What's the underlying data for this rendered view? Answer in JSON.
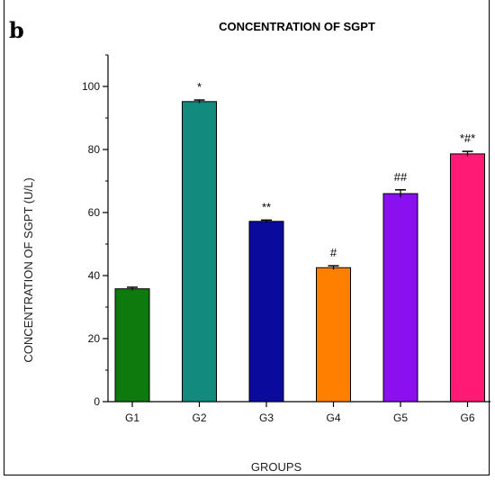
{
  "panel_label": "b",
  "chart_data": {
    "type": "bar",
    "title": "CONCENTRATION OF SGPT",
    "xlabel": "GROUPS",
    "ylabel": "CONCENTRATION OF SGPT (U/L)",
    "categories": [
      "G1",
      "G2",
      "G3",
      "G4",
      "G5",
      "G6"
    ],
    "values": [
      35.8,
      95.2,
      57.2,
      42.5,
      66.0,
      78.6
    ],
    "errors": [
      0.5,
      0.5,
      0.4,
      0.6,
      1.2,
      0.8
    ],
    "annotations": [
      "",
      "*",
      "**",
      "#",
      "##",
      "*#*"
    ],
    "colors": [
      "#0e7a0e",
      "#128a7e",
      "#0a0a9c",
      "#ff7f00",
      "#8a10f0",
      "#ff1a75"
    ],
    "ylim": [
      0,
      110
    ],
    "yticks": [
      0,
      20,
      40,
      60,
      80,
      100
    ],
    "grid": false,
    "legend": "none"
  }
}
